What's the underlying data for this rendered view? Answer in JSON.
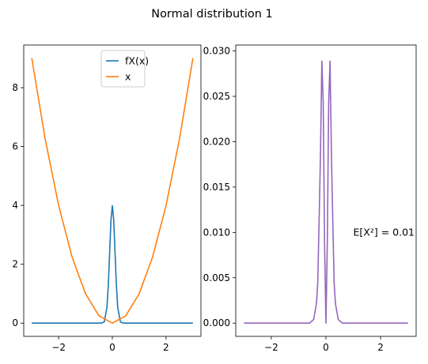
{
  "figure": {
    "suptitle": "Normal distribution 1"
  },
  "chart_data": [
    {
      "type": "line",
      "title": "",
      "xlabel": "",
      "ylabel": "",
      "xlim": [
        -3.3,
        3.3
      ],
      "ylim": [
        -0.45,
        9.45
      ],
      "xticks": [
        -2,
        0,
        2
      ],
      "xtick_labels": [
        "−2",
        "0",
        "2"
      ],
      "yticks": [
        0,
        2,
        4,
        6,
        8
      ],
      "ytick_labels": [
        "0",
        "2",
        "4",
        "6",
        "8"
      ],
      "grid": false,
      "legend": "upper-center",
      "series": [
        {
          "name": "fX(x)",
          "color": "#1f77b4",
          "x": [
            -3.0,
            -0.5,
            -0.4,
            -0.3,
            -0.2,
            -0.15,
            -0.1,
            -0.05,
            0.0,
            0.05,
            0.1,
            0.15,
            0.2,
            0.3,
            0.4,
            0.5,
            3.0
          ],
          "y": [
            0.0,
            0.0,
            0.0013,
            0.044,
            0.54,
            1.3,
            2.42,
            3.52,
            3.99,
            3.52,
            2.42,
            1.3,
            0.54,
            0.044,
            0.0013,
            0.0,
            0.0
          ]
        },
        {
          "name": "x",
          "color": "#ff7f0e",
          "x": [
            -3.0,
            -2.5,
            -2.0,
            -1.5,
            -1.0,
            -0.5,
            0.0,
            0.5,
            1.0,
            1.5,
            2.0,
            2.5,
            3.0
          ],
          "y": [
            9.0,
            6.25,
            4.0,
            2.25,
            1.0,
            0.25,
            0.0,
            0.25,
            1.0,
            2.25,
            4.0,
            6.25,
            9.0
          ]
        }
      ]
    },
    {
      "type": "line",
      "title": "",
      "xlabel": "",
      "ylabel": "",
      "xlim": [
        -3.3,
        3.3
      ],
      "ylim": [
        -0.00146,
        0.03066
      ],
      "xticks": [
        -2,
        0,
        2
      ],
      "xtick_labels": [
        "−2",
        "0",
        "2"
      ],
      "yticks": [
        0.0,
        0.005,
        0.01,
        0.015,
        0.02,
        0.025,
        0.03
      ],
      "ytick_labels": [
        "0.000",
        "0.005",
        "0.010",
        "0.015",
        "0.020",
        "0.025",
        "0.030"
      ],
      "grid": false,
      "annotation": {
        "text": "E[X²] = 0.01",
        "x": 1.0,
        "y": 0.01
      },
      "series": [
        {
          "color": "#9467bd",
          "x": [
            -3.0,
            -0.6,
            -0.45,
            -0.35,
            -0.3,
            -0.25,
            -0.2,
            -0.15,
            -0.1,
            -0.05,
            0.0,
            0.05,
            0.1,
            0.15,
            0.2,
            0.25,
            0.3,
            0.35,
            0.45,
            0.6,
            3.0
          ],
          "y": [
            0.0,
            0.0,
            0.0004,
            0.0021,
            0.0044,
            0.0113,
            0.0186,
            0.0289,
            0.0243,
            0.0088,
            0.0,
            0.0088,
            0.0243,
            0.0289,
            0.0186,
            0.0113,
            0.0044,
            0.0021,
            0.0004,
            0.0,
            0.0
          ]
        }
      ]
    }
  ]
}
